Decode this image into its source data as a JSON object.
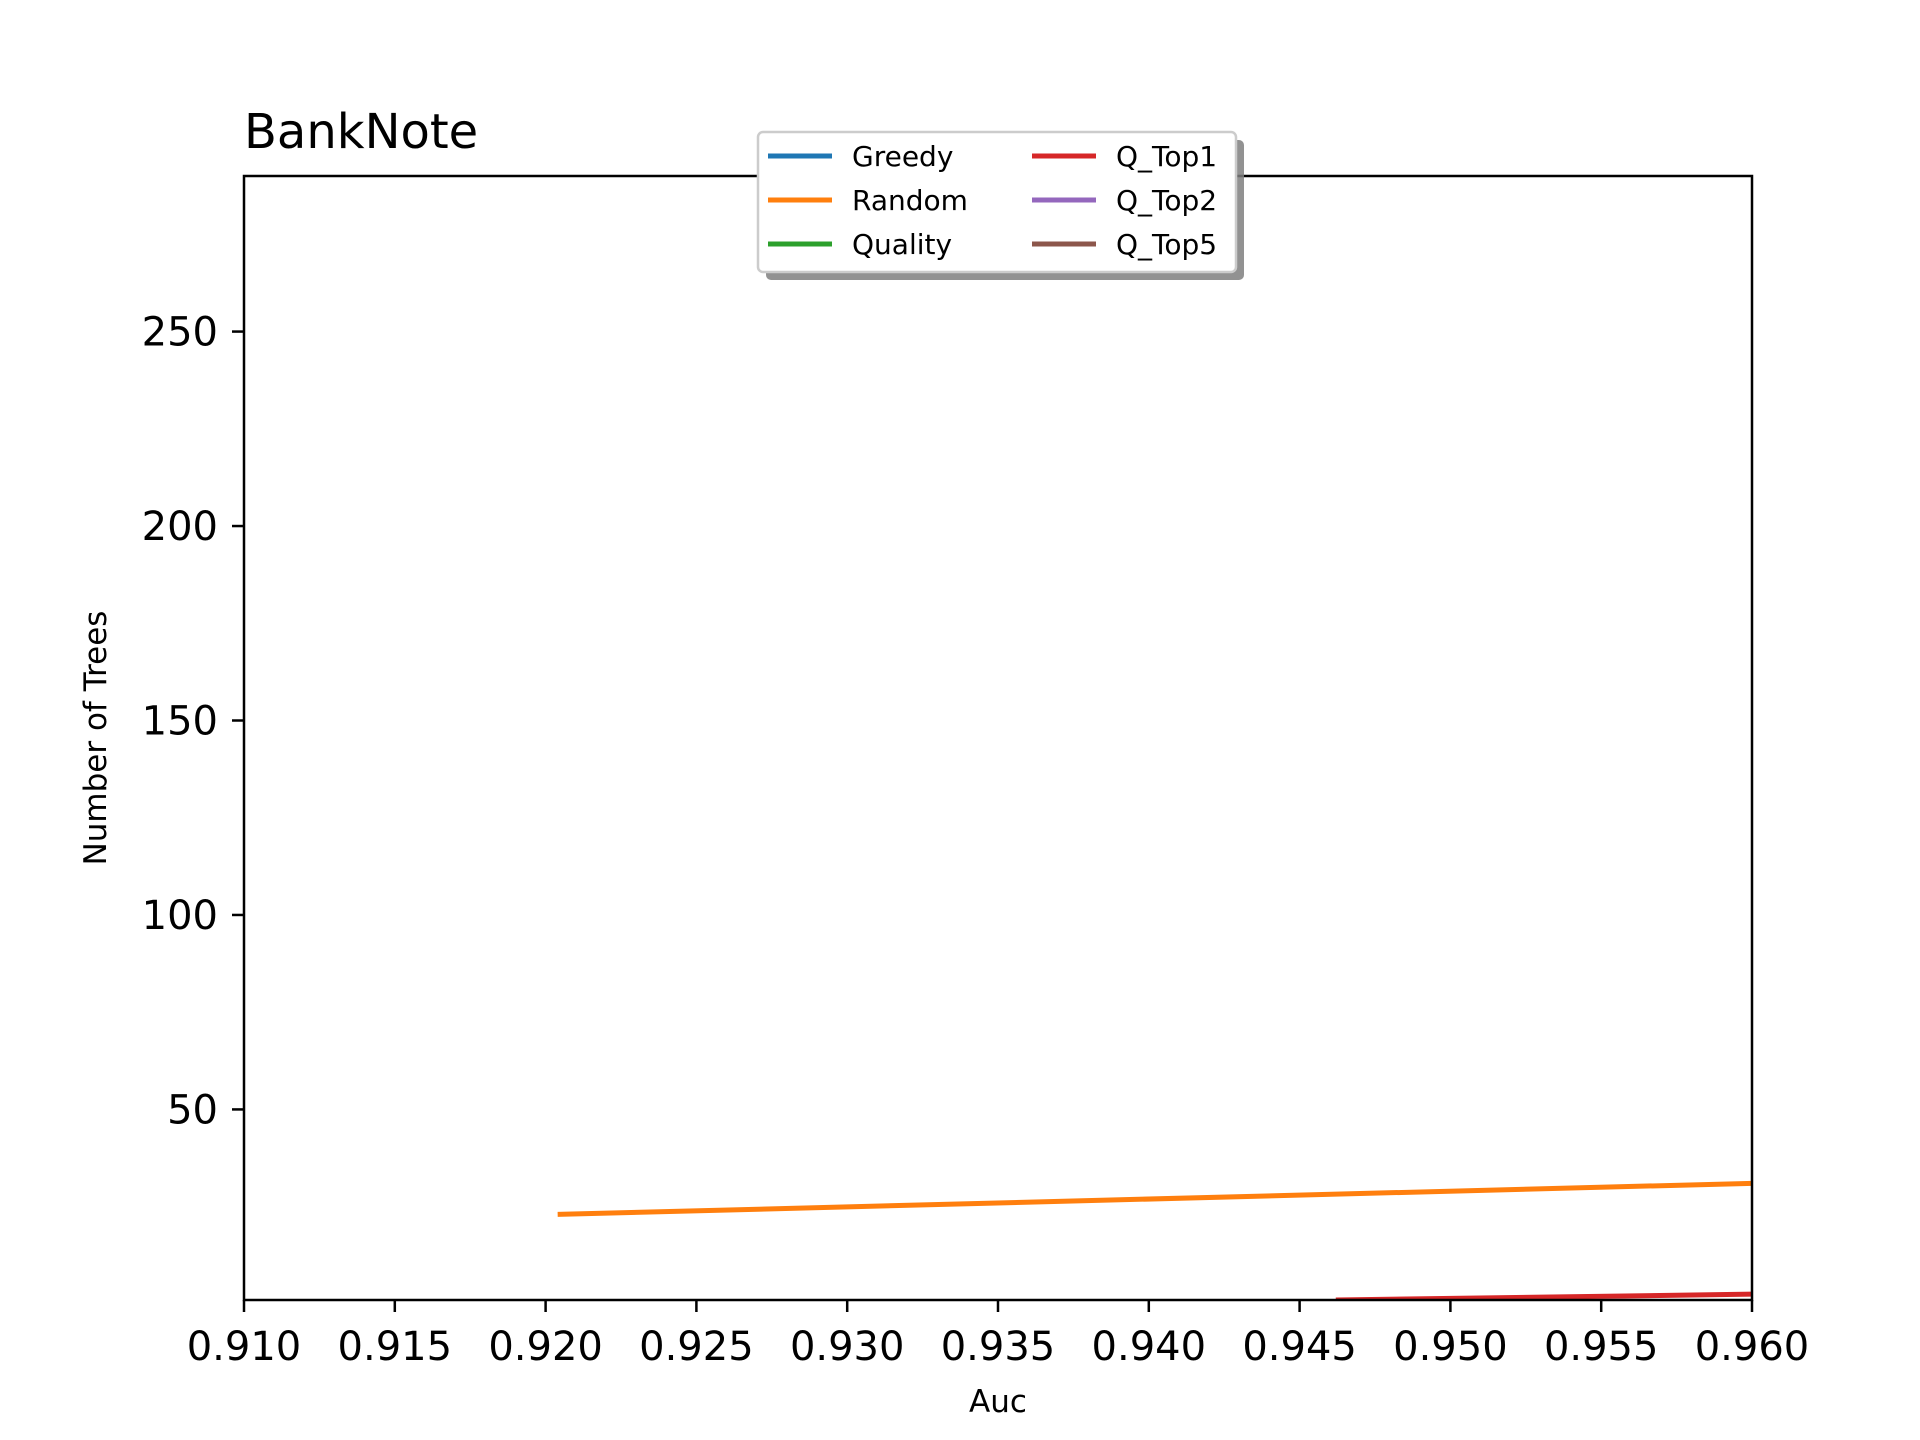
{
  "chart_data": {
    "type": "line",
    "title": "BankNote",
    "xlabel": "Auc",
    "ylabel": "Number of Trees",
    "xlim": [
      0.91,
      0.96
    ],
    "ylim": [
      1,
      290
    ],
    "xticks": [
      "0.910",
      "0.915",
      "0.920",
      "0.925",
      "0.930",
      "0.935",
      "0.940",
      "0.945",
      "0.950",
      "0.955",
      "0.960"
    ],
    "yticks": [
      50,
      100,
      150,
      200,
      250
    ],
    "grid": false,
    "legend_position": "top-center",
    "legend_columns": 2,
    "series": [
      {
        "name": "Greedy",
        "color": "#1f77b4",
        "x": [],
        "y": []
      },
      {
        "name": "Random",
        "color": "#ff7f0e",
        "x": [
          0.9204,
          0.96
        ],
        "y": [
          23,
          31
        ]
      },
      {
        "name": "Quality",
        "color": "#2ca02c",
        "x": [],
        "y": []
      },
      {
        "name": "Q_Top1",
        "color": "#d62728",
        "x": [
          0.9462,
          0.96
        ],
        "y": [
          1,
          2.5
        ]
      },
      {
        "name": "Q_Top2",
        "color": "#9467bd",
        "x": [],
        "y": []
      },
      {
        "name": "Q_Top5",
        "color": "#8c564b",
        "x": [],
        "y": []
      }
    ]
  }
}
